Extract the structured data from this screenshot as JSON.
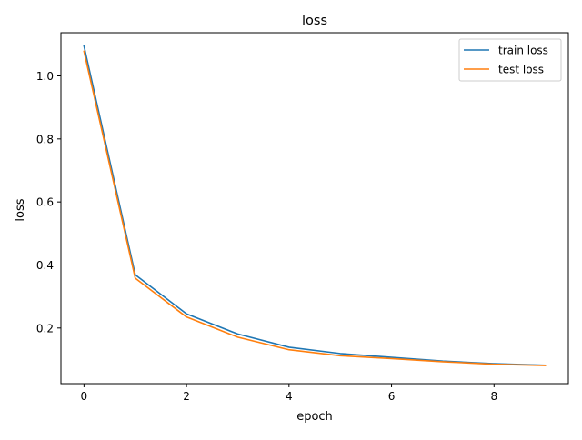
{
  "chart_data": {
    "type": "line",
    "title": "loss",
    "xlabel": "epoch",
    "ylabel": "loss",
    "x": [
      0,
      1,
      2,
      3,
      4,
      5,
      6,
      7,
      8,
      9
    ],
    "xlim": [
      -0.45,
      9.45
    ],
    "ylim": [
      0.0235,
      1.137
    ],
    "xticks": [
      0,
      2,
      4,
      6,
      8
    ],
    "xtick_labels": [
      "0",
      "2",
      "4",
      "6",
      "8"
    ],
    "yticks": [
      0.2,
      0.4,
      0.6,
      0.8,
      1.0
    ],
    "ytick_labels": [
      "0.2",
      "0.4",
      "0.6",
      "0.8",
      "1.0"
    ],
    "grid": false,
    "legend_position": "top-right",
    "series": [
      {
        "name": "train loss",
        "color": "#1f77b4",
        "values": [
          1.095,
          0.369,
          0.245,
          0.181,
          0.139,
          0.119,
          0.107,
          0.095,
          0.087,
          0.082
        ]
      },
      {
        "name": "test loss",
        "color": "#ff7f0e",
        "values": [
          1.078,
          0.358,
          0.235,
          0.171,
          0.131,
          0.112,
          0.103,
          0.093,
          0.085,
          0.081
        ]
      }
    ]
  }
}
